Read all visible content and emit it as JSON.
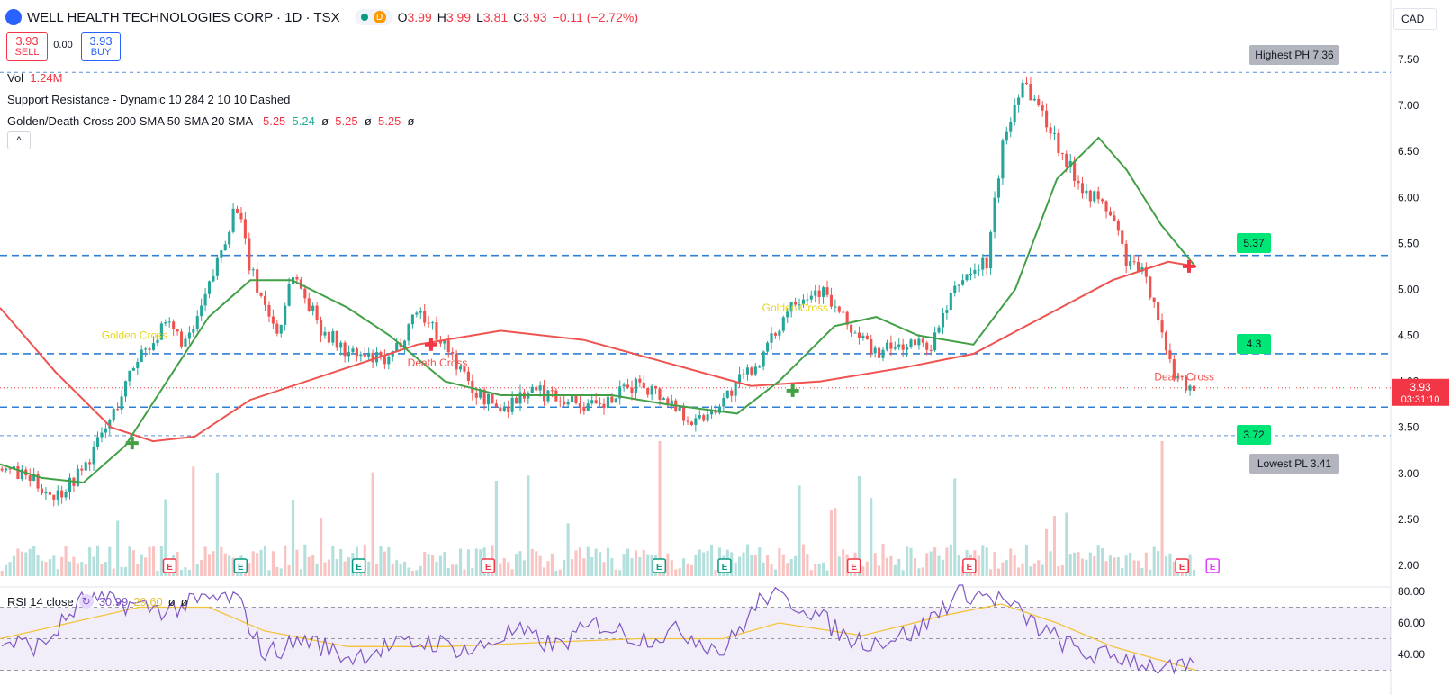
{
  "header": {
    "title": "WELL HEALTH TECHNOLOGIES CORP · 1D · TSX",
    "market_status": "D",
    "open_label": "O",
    "open": "3.99",
    "high_label": "H",
    "high": "3.99",
    "low_label": "L",
    "low": "3.81",
    "close_label": "C",
    "close": "3.93",
    "change": "−0.11 (−2.72%)",
    "currency": "CAD"
  },
  "trade": {
    "sell_price": "3.93",
    "sell_label": "SELL",
    "spread": "0.00",
    "buy_price": "3.93",
    "buy_label": "BUY"
  },
  "legend": {
    "vol_label": "Vol",
    "vol_value": "1.24M",
    "sr_label": "Support Resistance - Dynamic 10 284 2 10 10 Dashed",
    "gd_label": "Golden/Death Cross 200 SMA 50 SMA 20 SMA",
    "gd_v1": "5.25",
    "gd_v2": "5.24",
    "gd_v3": "ø",
    "gd_v4": "5.25",
    "gd_v5": "ø",
    "gd_v6": "5.25",
    "gd_v7": "ø",
    "collapse_glyph": "^"
  },
  "rsi_legend": {
    "label": "RSI 14 close",
    "v1": "30.99",
    "v2": "29.60",
    "v3": "ø",
    "v4": "ø"
  },
  "price_tag": {
    "price": "3.93",
    "countdown": "03:31:10"
  },
  "annotations": {
    "highest": "Highest PH 7.36",
    "lowest": "Lowest PL 3.41",
    "level_537": "5.37",
    "level_43": "4.3",
    "level_372": "3.72"
  },
  "cross_labels": {
    "golden": "Golden Cross",
    "death": "Death Cross"
  },
  "earnings_letter": "E",
  "colors": {
    "up": "#26a69a",
    "down": "#ef5350",
    "sma_slow": "#ef5350",
    "sma_fast": "#43a047",
    "level_line": "#2e7fd6",
    "rsi": "#7e57c2",
    "rsi_ma": "#f3c33a",
    "label_green": "#00e676",
    "label_gray": "#b2b5be"
  },
  "chart_data": {
    "type": "candlestick",
    "y_axis_ticks": [
      "7.50",
      "7.00",
      "6.50",
      "6.00",
      "5.50",
      "5.00",
      "4.50",
      "4.00",
      "3.50",
      "3.00",
      "2.50",
      "2.00"
    ],
    "rsi_axis_ticks": [
      "80.00",
      "60.00",
      "40.00"
    ],
    "ylim": [
      2.0,
      7.5
    ],
    "rsi_ylim": [
      30,
      85
    ],
    "levels": [
      7.36,
      5.37,
      4.3,
      3.72,
      3.41
    ],
    "close_path": [
      [
        0,
        3.05
      ],
      [
        0.02,
        2.95
      ],
      [
        0.04,
        2.75
      ],
      [
        0.06,
        3.05
      ],
      [
        0.08,
        3.6
      ],
      [
        0.1,
        4.3
      ],
      [
        0.12,
        4.6
      ],
      [
        0.135,
        4.4
      ],
      [
        0.15,
        5.0
      ],
      [
        0.17,
        5.95
      ],
      [
        0.18,
        5.2
      ],
      [
        0.2,
        4.5
      ],
      [
        0.21,
        5.2
      ],
      [
        0.23,
        4.6
      ],
      [
        0.25,
        4.3
      ],
      [
        0.28,
        4.2
      ],
      [
        0.3,
        4.8
      ],
      [
        0.32,
        4.4
      ],
      [
        0.34,
        3.9
      ],
      [
        0.36,
        3.7
      ],
      [
        0.38,
        3.9
      ],
      [
        0.4,
        3.85
      ],
      [
        0.43,
        3.7
      ],
      [
        0.46,
        4.0
      ],
      [
        0.48,
        3.8
      ],
      [
        0.5,
        3.55
      ],
      [
        0.52,
        3.8
      ],
      [
        0.55,
        4.3
      ],
      [
        0.57,
        4.9
      ],
      [
        0.59,
        5.0
      ],
      [
        0.61,
        4.6
      ],
      [
        0.63,
        4.3
      ],
      [
        0.65,
        4.4
      ],
      [
        0.67,
        4.4
      ],
      [
        0.69,
        5.1
      ],
      [
        0.71,
        5.3
      ],
      [
        0.72,
        6.5
      ],
      [
        0.735,
        7.3
      ],
      [
        0.75,
        6.9
      ],
      [
        0.77,
        6.3
      ],
      [
        0.78,
        6.1
      ],
      [
        0.8,
        5.8
      ],
      [
        0.81,
        5.3
      ],
      [
        0.82,
        5.2
      ],
      [
        0.83,
        4.9
      ],
      [
        0.84,
        4.2
      ],
      [
        0.85,
        4.0
      ],
      [
        0.86,
        3.93
      ]
    ],
    "sma_200": [
      [
        0,
        4.8
      ],
      [
        0.04,
        4.1
      ],
      [
        0.08,
        3.5
      ],
      [
        0.11,
        3.35
      ],
      [
        0.14,
        3.4
      ],
      [
        0.18,
        3.8
      ],
      [
        0.24,
        4.1
      ],
      [
        0.3,
        4.4
      ],
      [
        0.36,
        4.55
      ],
      [
        0.42,
        4.45
      ],
      [
        0.48,
        4.2
      ],
      [
        0.54,
        3.95
      ],
      [
        0.59,
        4.0
      ],
      [
        0.65,
        4.15
      ],
      [
        0.7,
        4.3
      ],
      [
        0.75,
        4.7
      ],
      [
        0.8,
        5.1
      ],
      [
        0.84,
        5.3
      ],
      [
        0.86,
        5.25
      ]
    ],
    "sma_50": [
      [
        0,
        3.1
      ],
      [
        0.03,
        2.95
      ],
      [
        0.06,
        2.9
      ],
      [
        0.09,
        3.3
      ],
      [
        0.12,
        4.0
      ],
      [
        0.15,
        4.7
      ],
      [
        0.18,
        5.1
      ],
      [
        0.21,
        5.1
      ],
      [
        0.25,
        4.8
      ],
      [
        0.28,
        4.5
      ],
      [
        0.32,
        4.0
      ],
      [
        0.36,
        3.85
      ],
      [
        0.4,
        3.85
      ],
      [
        0.44,
        3.85
      ],
      [
        0.48,
        3.75
      ],
      [
        0.53,
        3.65
      ],
      [
        0.56,
        4.0
      ],
      [
        0.6,
        4.6
      ],
      [
        0.63,
        4.7
      ],
      [
        0.66,
        4.5
      ],
      [
        0.7,
        4.4
      ],
      [
        0.73,
        5.0
      ],
      [
        0.76,
        6.2
      ],
      [
        0.79,
        6.65
      ],
      [
        0.81,
        6.3
      ],
      [
        0.835,
        5.7
      ],
      [
        0.86,
        5.24
      ]
    ],
    "rsi": [
      [
        0,
        48
      ],
      [
        0.03,
        45
      ],
      [
        0.06,
        75
      ],
      [
        0.09,
        72
      ],
      [
        0.12,
        68
      ],
      [
        0.15,
        75
      ],
      [
        0.17,
        76
      ],
      [
        0.19,
        40
      ],
      [
        0.22,
        50
      ],
      [
        0.25,
        38
      ],
      [
        0.28,
        45
      ],
      [
        0.31,
        48
      ],
      [
        0.34,
        42
      ],
      [
        0.37,
        55
      ],
      [
        0.4,
        45
      ],
      [
        0.43,
        60
      ],
      [
        0.46,
        50
      ],
      [
        0.49,
        55
      ],
      [
        0.52,
        42
      ],
      [
        0.55,
        78
      ],
      [
        0.58,
        70
      ],
      [
        0.61,
        50
      ],
      [
        0.63,
        48
      ],
      [
        0.66,
        55
      ],
      [
        0.69,
        80
      ],
      [
        0.72,
        75
      ],
      [
        0.75,
        55
      ],
      [
        0.78,
        40
      ],
      [
        0.81,
        38
      ],
      [
        0.84,
        30
      ],
      [
        0.86,
        31
      ]
    ],
    "rsi_ma": [
      [
        0,
        50
      ],
      [
        0.05,
        60
      ],
      [
        0.1,
        70
      ],
      [
        0.15,
        70
      ],
      [
        0.19,
        55
      ],
      [
        0.25,
        45
      ],
      [
        0.32,
        45
      ],
      [
        0.4,
        48
      ],
      [
        0.46,
        50
      ],
      [
        0.52,
        50
      ],
      [
        0.56,
        60
      ],
      [
        0.62,
        52
      ],
      [
        0.68,
        65
      ],
      [
        0.72,
        72
      ],
      [
        0.76,
        60
      ],
      [
        0.8,
        45
      ],
      [
        0.84,
        35
      ],
      [
        0.86,
        30
      ]
    ]
  }
}
